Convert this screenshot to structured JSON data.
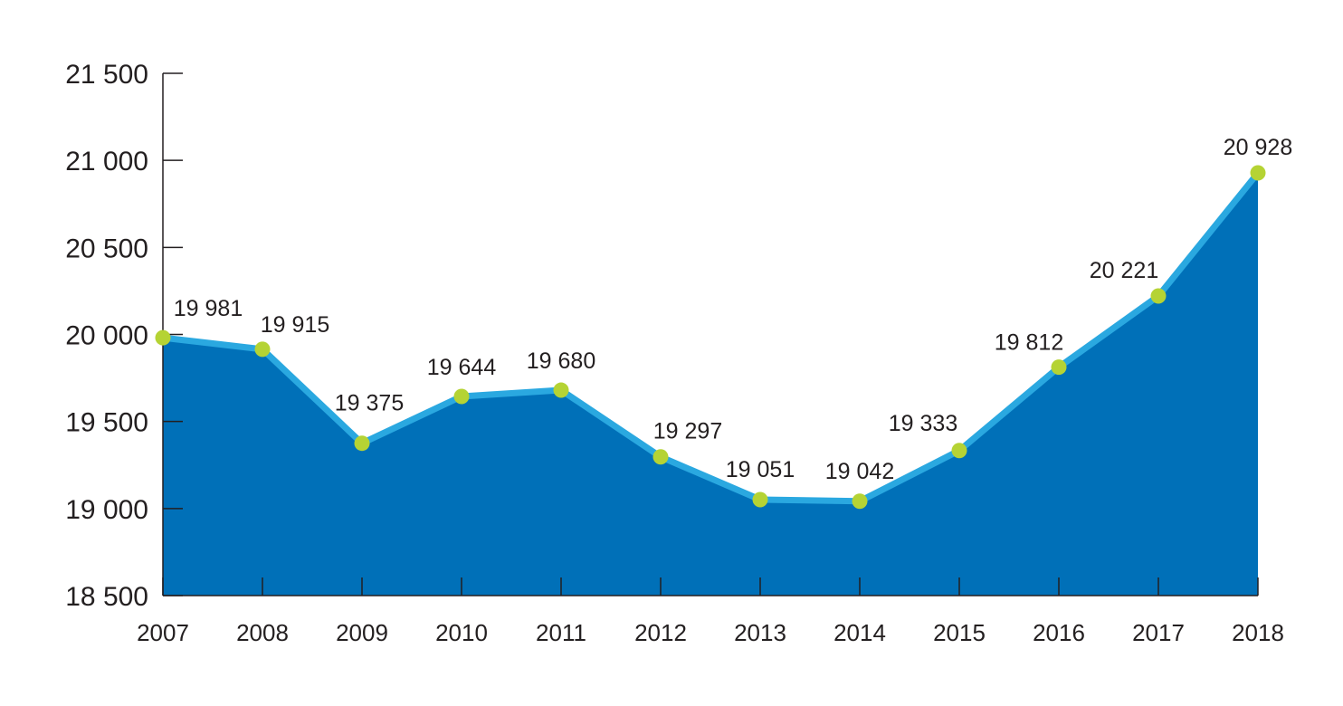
{
  "chart_data": {
    "type": "area",
    "title": "",
    "xlabel": "",
    "ylabel": "",
    "categories": [
      "2007",
      "2008",
      "2009",
      "2010",
      "2011",
      "2012",
      "2013",
      "2014",
      "2015",
      "2016",
      "2017",
      "2018"
    ],
    "values": [
      19981,
      19915,
      19375,
      19644,
      19680,
      19297,
      19051,
      19042,
      19333,
      19812,
      20221,
      20928
    ],
    "value_labels": [
      "19 981",
      "19 915",
      "19 375",
      "19 644",
      "19 680",
      "19 297",
      "19 051",
      "19 042",
      "19 333",
      "19 812",
      "20 221",
      "20 928"
    ],
    "ylim": [
      18500,
      21500
    ],
    "y_ticks": [
      18500,
      19000,
      19500,
      20000,
      20500,
      21000,
      21500
    ],
    "y_tick_labels": [
      "18 500",
      "19 000",
      "19 500",
      "20 000",
      "20 500",
      "21 000",
      "21 500"
    ],
    "grid": false,
    "legend": "none",
    "colors": {
      "area_fill": "#0070b8",
      "line": "#2aa8e0",
      "marker": "#b5d334",
      "axis": "#231f20",
      "text": "#231f20"
    }
  }
}
